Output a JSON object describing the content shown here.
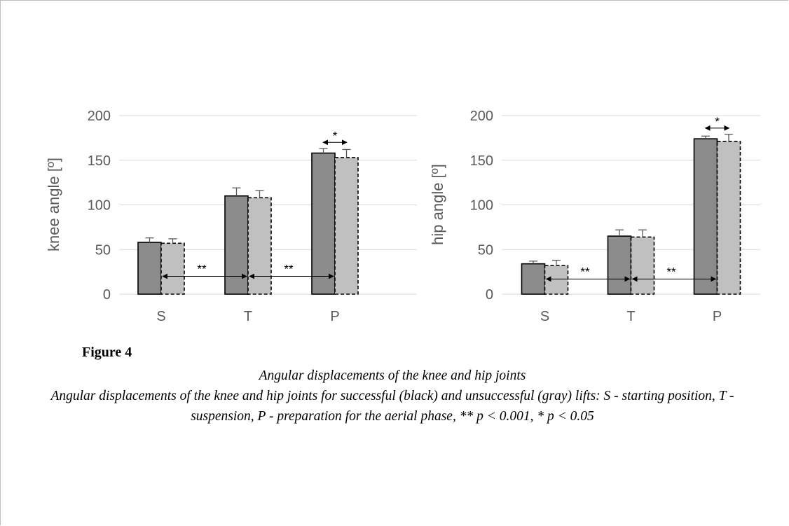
{
  "figure": {
    "label": "Figure 4",
    "title": "Angular displacements of the knee and hip joints",
    "caption": "Angular displacements of the knee and hip joints for successful (black) and unsuccessful (gray) lifts: S - starting position, T - suspension, P - preparation for the aerial phase, ** p < 0.001, * p < 0.05"
  },
  "colors": {
    "successful": "#8c8c8c",
    "unsuccessful": "#c0c0c0",
    "axis_text": "#595959",
    "grid": "#d9d9d9"
  },
  "chart_data": [
    {
      "type": "bar",
      "ylabel": "knee  angle [º]",
      "categories": [
        "S",
        "T",
        "P"
      ],
      "ylim": [
        0,
        200
      ],
      "yticks": [
        0,
        50,
        100,
        150,
        200
      ],
      "grid": true,
      "series": [
        {
          "values": [
            58,
            110,
            158
          ],
          "error": [
            5,
            9,
            5
          ],
          "border": "solid"
        },
        {
          "values": [
            57,
            108,
            153
          ],
          "error": [
            5,
            8,
            9
          ],
          "border": "dashed"
        }
      ],
      "annotations": [
        {
          "text": "**",
          "between": [
            "S",
            "T"
          ],
          "y": 20
        },
        {
          "text": "**",
          "between": [
            "T",
            "P"
          ],
          "y": 20
        },
        {
          "text": "*",
          "within": "P",
          "y": 170
        }
      ]
    },
    {
      "type": "bar",
      "ylabel": "hip angle [º]",
      "categories": [
        "S",
        "T",
        "P"
      ],
      "ylim": [
        0,
        200
      ],
      "yticks": [
        0,
        50,
        100,
        150,
        200
      ],
      "grid": true,
      "series": [
        {
          "values": [
            34,
            65,
            174
          ],
          "error": [
            3,
            7,
            3
          ],
          "border": "solid"
        },
        {
          "values": [
            32,
            64,
            171
          ],
          "error": [
            6,
            8,
            8
          ],
          "border": "dashed"
        }
      ],
      "annotations": [
        {
          "text": "**",
          "between": [
            "S",
            "T"
          ],
          "y": 17
        },
        {
          "text": "**",
          "between": [
            "T",
            "P"
          ],
          "y": 17
        },
        {
          "text": "*",
          "within": "P",
          "y": 186
        }
      ]
    }
  ]
}
